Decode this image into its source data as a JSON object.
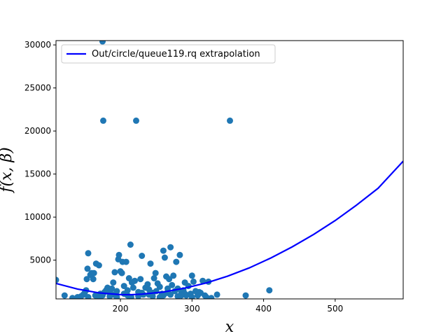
{
  "chart_data": {
    "type": "scatter",
    "xlabel": "x",
    "ylabel": "f(x, β)",
    "xlim": [
      110,
      595
    ],
    "ylim": [
      500,
      30500
    ],
    "xticks": [
      200,
      300,
      400,
      500
    ],
    "yticks": [
      5000,
      10000,
      15000,
      20000,
      25000,
      30000
    ],
    "legend": {
      "placement": "top-left",
      "entries": [
        "Out/circle/queue119.rq extrapolation"
      ]
    },
    "grid": false,
    "colors": {
      "points": "#1f77b4",
      "line": "#0000ff"
    },
    "series": [
      {
        "kind": "scatter",
        "points": [
          [
            110,
            2700
          ],
          [
            122,
            900
          ],
          [
            133,
            600
          ],
          [
            140,
            700
          ],
          [
            145,
            800
          ],
          [
            148,
            1000
          ],
          [
            150,
            1200
          ],
          [
            152,
            1500
          ],
          [
            153,
            2800
          ],
          [
            155,
            5800
          ],
          [
            154,
            4000
          ],
          [
            158,
            3300
          ],
          [
            160,
            3500
          ],
          [
            162,
            2800
          ],
          [
            163,
            3500
          ],
          [
            166,
            4600
          ],
          [
            170,
            4400
          ],
          [
            175,
            30400
          ],
          [
            176,
            21200
          ],
          [
            172,
            1100
          ],
          [
            178,
            1300
          ],
          [
            180,
            1500
          ],
          [
            182,
            1800
          ],
          [
            185,
            1200
          ],
          [
            188,
            1700
          ],
          [
            190,
            2400
          ],
          [
            192,
            3600
          ],
          [
            195,
            1400
          ],
          [
            197,
            5100
          ],
          [
            198,
            5600
          ],
          [
            200,
            3700
          ],
          [
            202,
            3500
          ],
          [
            203,
            4800
          ],
          [
            205,
            2000
          ],
          [
            208,
            4800
          ],
          [
            210,
            1500
          ],
          [
            212,
            2900
          ],
          [
            214,
            6800
          ],
          [
            216,
            2400
          ],
          [
            218,
            1800
          ],
          [
            220,
            2600
          ],
          [
            222,
            21200
          ],
          [
            225,
            1300
          ],
          [
            228,
            2800
          ],
          [
            230,
            5500
          ],
          [
            232,
            1000
          ],
          [
            235,
            1800
          ],
          [
            238,
            2200
          ],
          [
            240,
            1600
          ],
          [
            242,
            4600
          ],
          [
            245,
            1200
          ],
          [
            247,
            2900
          ],
          [
            249,
            3500
          ],
          [
            252,
            2300
          ],
          [
            255,
            1900
          ],
          [
            258,
            1100
          ],
          [
            260,
            6100
          ],
          [
            262,
            5300
          ],
          [
            264,
            3100
          ],
          [
            266,
            1700
          ],
          [
            268,
            2800
          ],
          [
            270,
            6500
          ],
          [
            272,
            2100
          ],
          [
            274,
            3200
          ],
          [
            276,
            1400
          ],
          [
            278,
            4800
          ],
          [
            280,
            1700
          ],
          [
            283,
            5600
          ],
          [
            285,
            1300
          ],
          [
            288,
            1500
          ],
          [
            290,
            2400
          ],
          [
            292,
            900
          ],
          [
            295,
            2000
          ],
          [
            298,
            1100
          ],
          [
            300,
            3200
          ],
          [
            302,
            2500
          ],
          [
            305,
            1400
          ],
          [
            308,
            900
          ],
          [
            312,
            1200
          ],
          [
            315,
            2600
          ],
          [
            318,
            900
          ],
          [
            320,
            700
          ],
          [
            323,
            2500
          ],
          [
            327,
            600
          ],
          [
            335,
            1000
          ],
          [
            353,
            21200
          ],
          [
            375,
            900
          ],
          [
            408,
            1500
          ],
          [
            165,
            900
          ],
          [
            185,
            800
          ],
          [
            195,
            700
          ],
          [
            210,
            900
          ],
          [
            225,
            800
          ],
          [
            245,
            800
          ],
          [
            260,
            900
          ],
          [
            280,
            800
          ],
          [
            300,
            700
          ],
          [
            170,
            700
          ],
          [
            190,
            1000
          ],
          [
            230,
            1200
          ],
          [
            250,
            1400
          ],
          [
            270,
            1000
          ],
          [
            290,
            1100
          ],
          [
            310,
            1300
          ],
          [
            155,
            700
          ],
          [
            175,
            900
          ],
          [
            205,
            1100
          ],
          [
            240,
            1000
          ],
          [
            265,
            1200
          ],
          [
            285,
            900
          ],
          [
            215,
            700
          ],
          [
            255,
            700
          ]
        ]
      },
      {
        "kind": "line",
        "name": "Out/circle/queue119.rq extrapolation",
        "x": [
          110,
          140,
          170,
          200,
          215,
          230,
          260,
          290,
          320,
          350,
          380,
          410,
          440,
          470,
          500,
          530,
          560,
          595
        ],
        "y": [
          2300,
          1650,
          1200,
          1000,
          990,
          1050,
          1300,
          1750,
          2350,
          3150,
          4100,
          5250,
          6550,
          8000,
          9600,
          11400,
          13350,
          16500
        ]
      }
    ]
  }
}
